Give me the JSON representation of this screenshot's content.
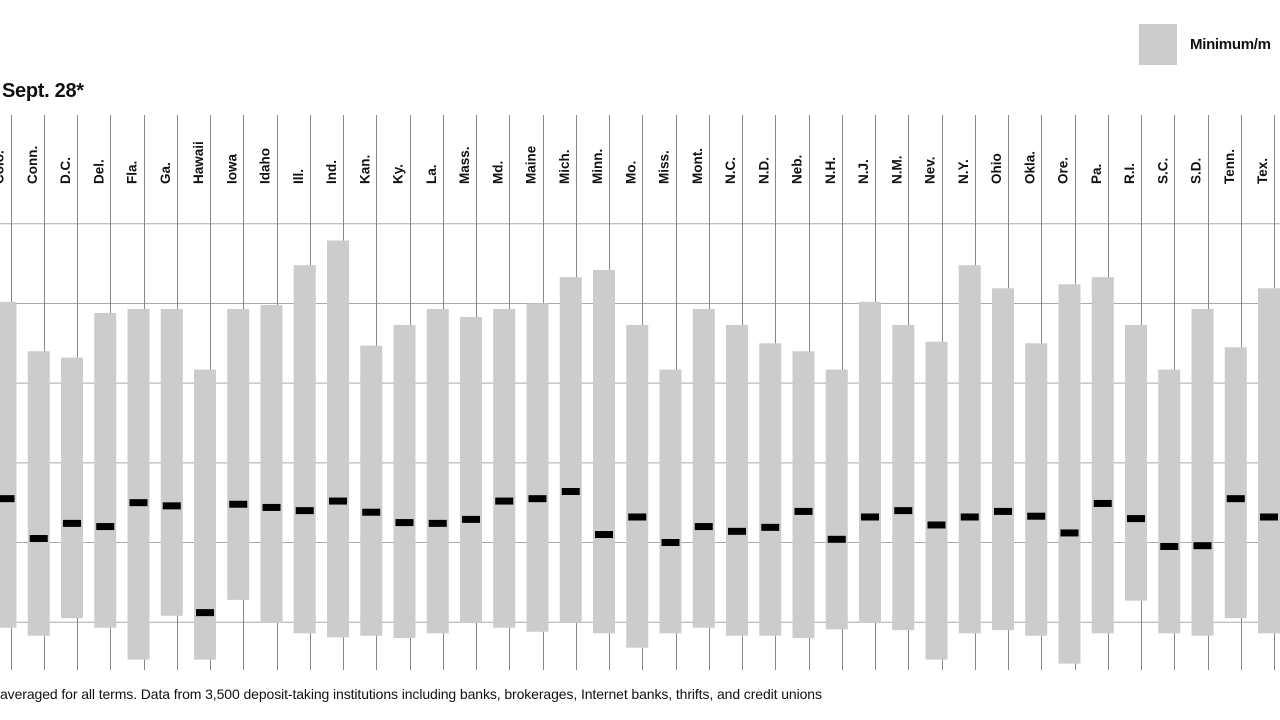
{
  "legend": {
    "label": "Minimum/m",
    "swatch_color": "#cccccc"
  },
  "date_label": "Sept. 28*",
  "footnote": "averaged for all terms. Data from 3,500 deposit-taking institutions including banks, brokerages, Internet banks, thrifts, and credit unions",
  "colors": {
    "bar": "#cccccc",
    "marker": "#000000",
    "gridline": "#aaaaaa",
    "divider": "#888888"
  },
  "chart_data": {
    "type": "bar",
    "categories": [
      "Colo.",
      "Conn.",
      "D.C.",
      "Del.",
      "Fla.",
      "Ga.",
      "Hawaii",
      "Iowa",
      "Idaho",
      "Ill.",
      "Ind.",
      "Kan.",
      "Ky.",
      "La.",
      "Mass.",
      "Md.",
      "Maine",
      "Mich.",
      "Minn.",
      "Mo.",
      "Miss.",
      "Mont.",
      "N.C.",
      "N.D.",
      "Neb.",
      "N.H.",
      "N.J.",
      "N.M.",
      "Nev.",
      "N.Y.",
      "Ohio",
      "Okla.",
      "Ore.",
      "Pa.",
      "R.I.",
      "S.C.",
      "S.D.",
      "Tenn.",
      "Tex."
    ],
    "series": [
      {
        "values": [
          [
            1.93,
            6.02
          ],
          [
            1.83,
            5.4
          ],
          [
            2.05,
            5.32
          ],
          [
            1.93,
            5.88
          ],
          [
            1.53,
            5.93
          ],
          [
            2.08,
            5.93
          ],
          [
            1.53,
            5.17
          ],
          [
            2.28,
            5.93
          ],
          [
            1.99,
            5.98
          ],
          [
            1.86,
            6.48
          ],
          [
            1.81,
            6.79
          ],
          [
            1.83,
            5.47
          ],
          [
            1.8,
            5.73
          ],
          [
            1.86,
            5.93
          ],
          [
            1.99,
            5.83
          ],
          [
            1.93,
            5.93
          ],
          [
            1.88,
            6.0
          ],
          [
            1.99,
            6.33
          ],
          [
            1.86,
            6.42
          ],
          [
            1.68,
            5.73
          ],
          [
            1.86,
            5.17
          ],
          [
            1.93,
            5.93
          ],
          [
            1.83,
            5.73
          ],
          [
            1.83,
            5.5
          ],
          [
            1.8,
            5.4
          ],
          [
            1.91,
            5.17
          ],
          [
            1.99,
            6.02
          ],
          [
            1.9,
            5.73
          ],
          [
            1.53,
            5.52
          ],
          [
            1.86,
            6.48
          ],
          [
            1.9,
            6.19
          ],
          [
            1.83,
            5.5
          ],
          [
            1.48,
            6.24
          ],
          [
            1.86,
            6.33
          ],
          [
            2.27,
            5.73
          ],
          [
            1.86,
            5.17
          ],
          [
            1.83,
            5.93
          ],
          [
            2.05,
            5.45
          ],
          [
            1.86,
            6.19
          ]
        ]
      },
      {
        "values": [
          3.55,
          3.05,
          3.24,
          3.2,
          3.5,
          3.46,
          2.12,
          3.48,
          3.44,
          3.4,
          3.52,
          3.38,
          3.25,
          3.24,
          3.29,
          3.52,
          3.55,
          3.64,
          3.1,
          3.32,
          3.0,
          3.2,
          3.14,
          3.19,
          3.39,
          3.04,
          3.32,
          3.4,
          3.22,
          3.32,
          3.39,
          3.33,
          3.12,
          3.49,
          3.3,
          2.95,
          2.96,
          3.55,
          3.32
        ]
      }
    ],
    "ylim": [
      1.4,
      7.8
    ],
    "grid": true
  }
}
